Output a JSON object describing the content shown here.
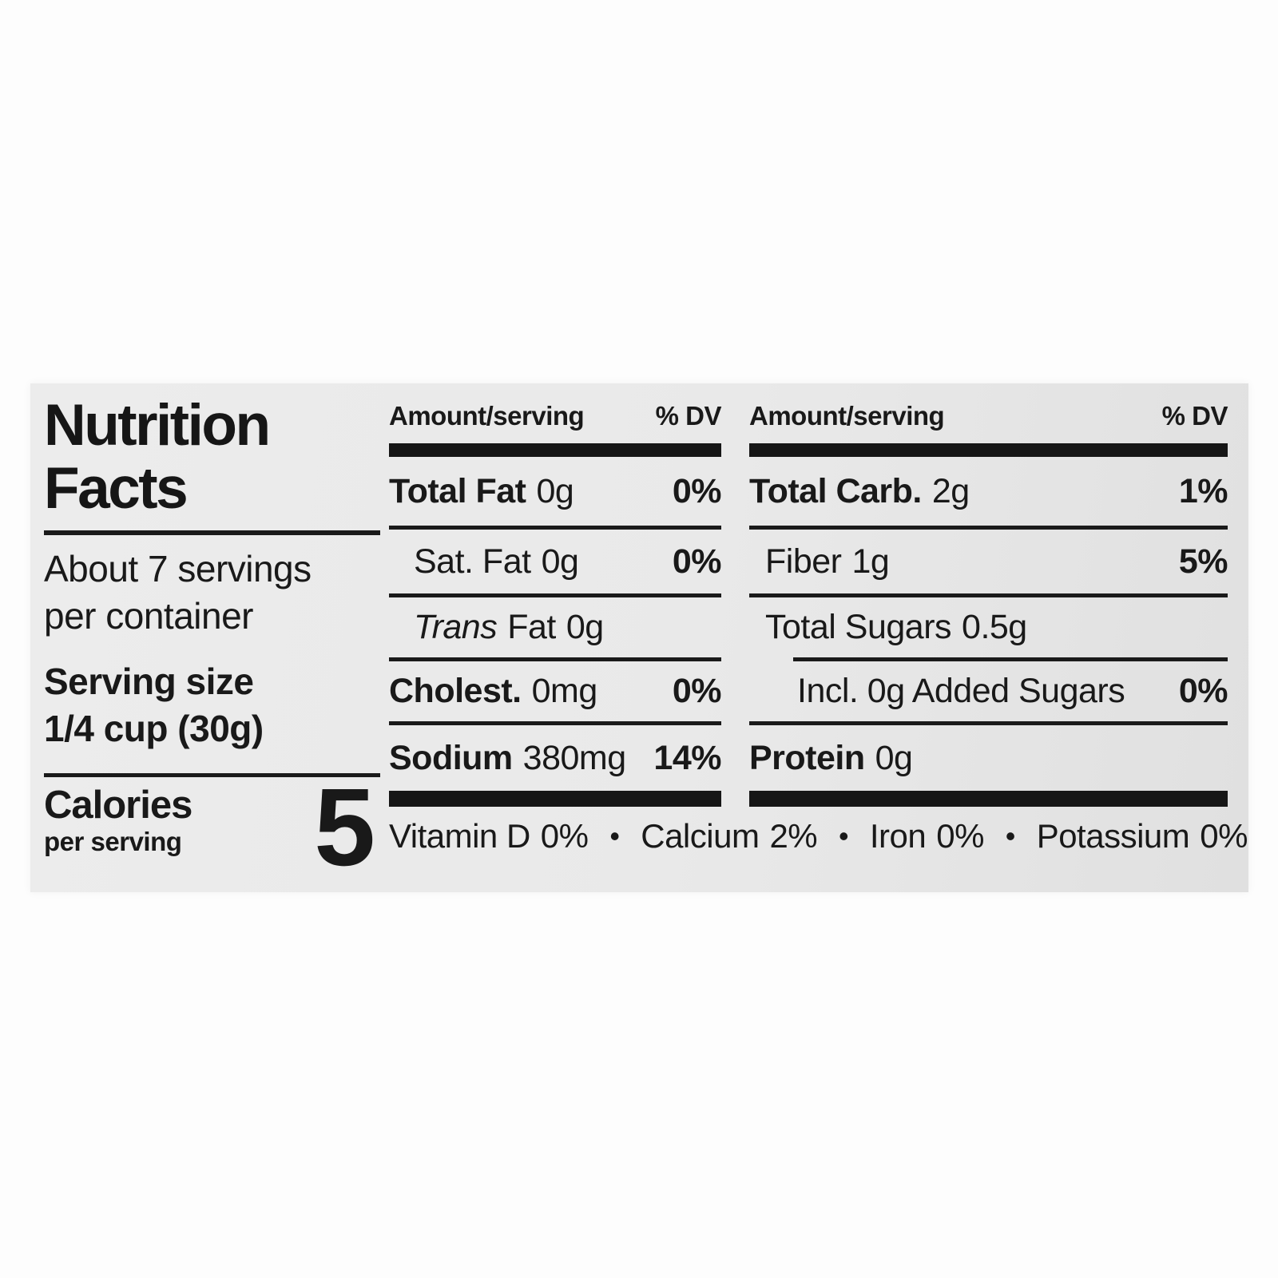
{
  "label": {
    "title_line1": "Nutrition",
    "title_line2": "Facts",
    "servings_line1": "About 7 servings",
    "servings_line2": "per container",
    "serving_size_label": "Serving size",
    "serving_size_value": "1/4 cup (30g)",
    "calories_label": "Calories",
    "calories_sublabel": "per serving",
    "calories_value": "5",
    "columns": [
      {
        "header": {
          "amount_label": "Amount/serving",
          "dv_label": "% DV"
        },
        "rows": [
          {
            "name": "Total Fat",
            "amount": "0g",
            "dv": "0%"
          },
          {
            "name": "Sat. Fat",
            "amount": "0g",
            "dv": "0%"
          },
          {
            "name_italic": "Trans",
            "name": "Fat",
            "amount": "0g",
            "dv": ""
          },
          {
            "name": "Cholest.",
            "amount": "0mg",
            "dv": "0%"
          },
          {
            "name": "Sodium",
            "amount": "380mg",
            "dv": "14%"
          }
        ]
      },
      {
        "header": {
          "amount_label": "Amount/serving",
          "dv_label": "% DV"
        },
        "rows": [
          {
            "name": "Total Carb.",
            "amount": "2g",
            "dv": "1%"
          },
          {
            "name": "Fiber",
            "amount": "1g",
            "dv": "5%"
          },
          {
            "name": "Total Sugars",
            "amount": "0.5g",
            "dv": ""
          },
          {
            "name": "Incl. 0g Added Sugars",
            "amount": "",
            "dv": "0%"
          },
          {
            "name": "Protein",
            "amount": "0g",
            "dv": ""
          }
        ]
      }
    ],
    "micronutrients": [
      {
        "name": "Vitamin D",
        "dv": "0%"
      },
      {
        "name": "Calcium",
        "dv": "2%"
      },
      {
        "name": "Iron",
        "dv": "0%"
      },
      {
        "name": "Potassium",
        "dv": "0%"
      }
    ],
    "bullet": "•"
  },
  "colors": {
    "text": "#191919",
    "bars": "#161616",
    "label_background": "#e9e9e9",
    "page_background": "#ffffff"
  }
}
